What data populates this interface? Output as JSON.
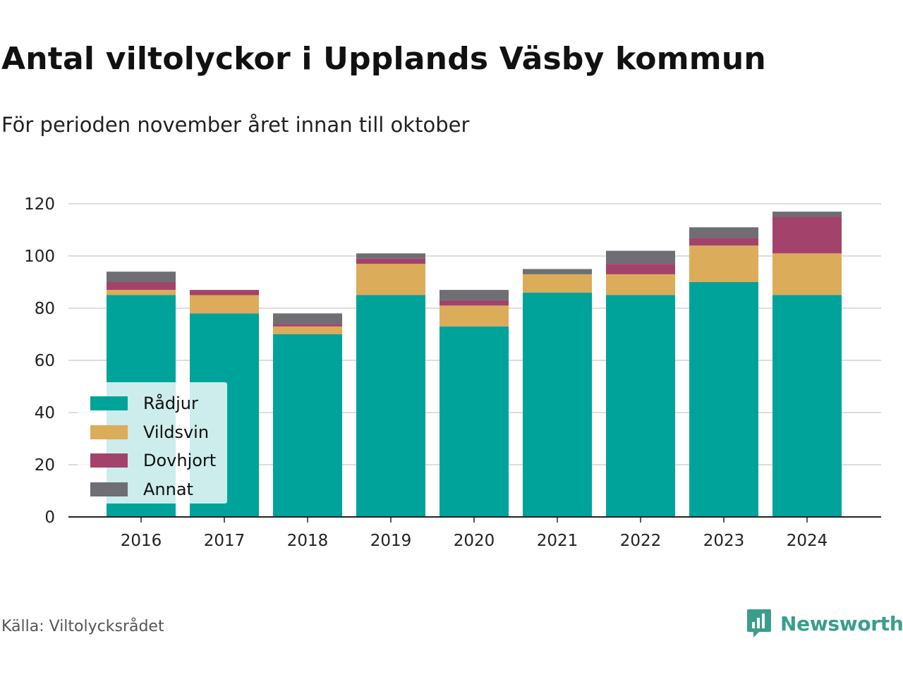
{
  "header": {
    "title": "Antal viltolyckor i Upplands Väsby kommun",
    "subtitle": "För perioden november året innan till oktober"
  },
  "footer": {
    "source": "Källa: Viltolycksrådet",
    "brand": "Newsworthy",
    "brand_color": "#3a9e8d",
    "brand_icon": "bar-chart-speech-bubble-icon"
  },
  "chart_data": {
    "type": "bar",
    "stacked": true,
    "categories": [
      "2016",
      "2017",
      "2018",
      "2019",
      "2020",
      "2021",
      "2022",
      "2023",
      "2024"
    ],
    "series": [
      {
        "name": "Rådjur",
        "color": "#00a39a",
        "values": [
          85,
          78,
          70,
          85,
          73,
          86,
          85,
          90,
          85
        ]
      },
      {
        "name": "Vildsvin",
        "color": "#dbac5a",
        "values": [
          2,
          7,
          3,
          12,
          8,
          7,
          8,
          14,
          16
        ]
      },
      {
        "name": "Dovhjort",
        "color": "#a3436b",
        "values": [
          3,
          2,
          1,
          2,
          2,
          0,
          4,
          3,
          14
        ]
      },
      {
        "name": "Annat",
        "color": "#6e6e74",
        "values": [
          4,
          0,
          4,
          2,
          4,
          2,
          5,
          4,
          2
        ]
      }
    ],
    "ylim": [
      0,
      120
    ],
    "yticks": [
      "0",
      "20",
      "40",
      "60",
      "80",
      "100",
      "120"
    ],
    "grid": true,
    "legend_position": "bottom-left"
  }
}
